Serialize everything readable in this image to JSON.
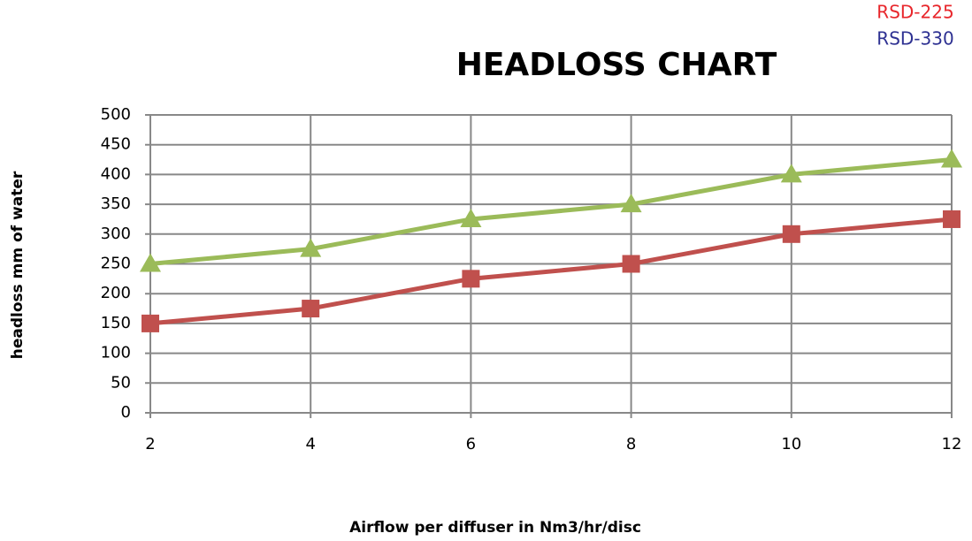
{
  "chart_data": {
    "type": "line",
    "title": "HEADLOSS CHART",
    "x_label": "Airflow per diffuser  in Nm3/hr/disc",
    "y_label": "headloss mm of water",
    "x": [
      2,
      4,
      6,
      8,
      10,
      12
    ],
    "series": [
      {
        "name": "RSD-225",
        "color": "#c0504d",
        "label_color": "#e8262b",
        "marker": "square",
        "values": [
          150,
          175,
          225,
          250,
          300,
          325
        ]
      },
      {
        "name": "RSD-330",
        "color": "#9bbb59",
        "label_color": "#2e3192",
        "marker": "triangle",
        "values": [
          250,
          275,
          325,
          350,
          400,
          425
        ]
      }
    ],
    "xlim": [
      2,
      12
    ],
    "xticks": [
      2,
      4,
      6,
      8,
      10,
      12
    ],
    "ylim": [
      0,
      500
    ],
    "yticks": [
      0,
      50,
      100,
      150,
      200,
      250,
      300,
      350,
      400,
      450,
      500
    ],
    "grid": true,
    "legend": "top-right"
  }
}
